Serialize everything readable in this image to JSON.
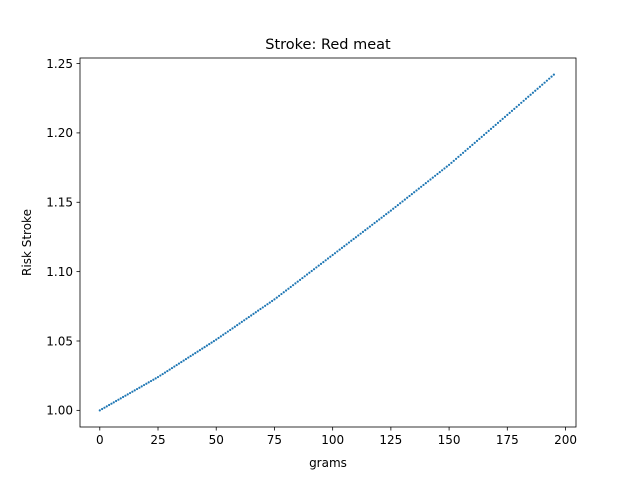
{
  "chart_data": {
    "type": "scatter",
    "title": "Stroke: Red meat",
    "xlabel": "grams",
    "ylabel": "Risk Stroke",
    "xlim": [
      -8.5,
      204.5
    ],
    "ylim": [
      0.988,
      1.254
    ],
    "xticks": [
      0,
      25,
      50,
      75,
      100,
      125,
      150,
      175,
      200
    ],
    "yticks": [
      1.0,
      1.05,
      1.1,
      1.15,
      1.2,
      1.25
    ],
    "xtick_labels": [
      "0",
      "25",
      "50",
      "75",
      "100",
      "125",
      "150",
      "175",
      "200"
    ],
    "ytick_labels": [
      "1.00",
      "1.05",
      "1.10",
      "1.15",
      "1.20",
      "1.25"
    ],
    "grid": false,
    "color": "#1f77b4",
    "x_range": [
      0,
      195
    ],
    "x_step": 1,
    "series": [
      {
        "x": [
          0,
          25,
          50,
          75,
          100,
          125,
          150,
          175,
          195
        ],
        "y": [
          1.0,
          1.024,
          1.051,
          1.08,
          1.112,
          1.144,
          1.177,
          1.213,
          1.242
        ]
      }
    ]
  }
}
